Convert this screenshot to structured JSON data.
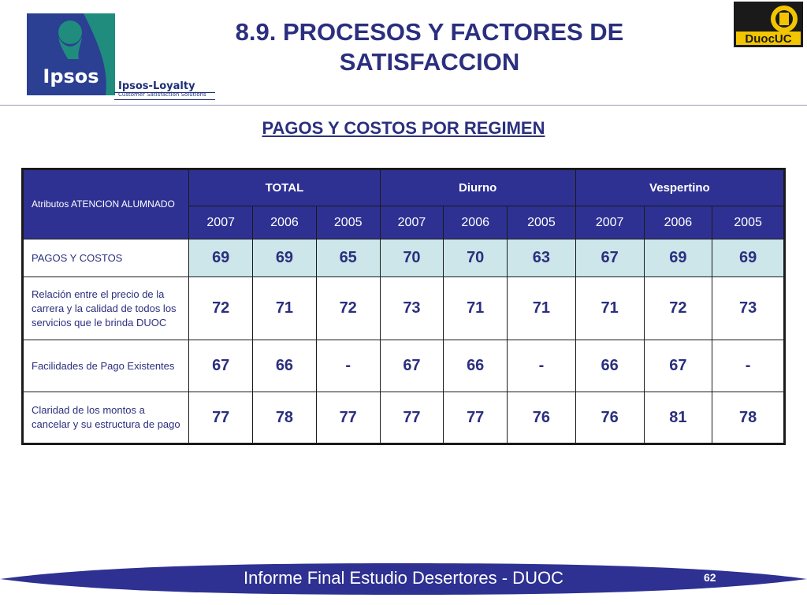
{
  "header": {
    "title": "8.9. PROCESOS Y FACTORES DE SATISFACCION",
    "subtitle": "PAGOS Y COSTOS POR REGIMEN",
    "ipsos_logo": {
      "name": "Ipsos",
      "icon": "ipsos-head-icon"
    },
    "ipsos_loyalty": {
      "brand": "Ipsos-Loyalty",
      "tagline": "Customer Satisfaction Solutions"
    },
    "duoc_logo": {
      "name": "DuocUC",
      "icon": "duoc-crest-icon"
    }
  },
  "table": {
    "attribute_header": "Atributos ATENCION ALUMNADO",
    "groups": [
      "TOTAL",
      "Diurno",
      "Vespertino"
    ],
    "years": [
      "2007",
      "2006",
      "2005",
      "2007",
      "2006",
      "2005",
      "2007",
      "2006",
      "2005"
    ],
    "rows": [
      {
        "label": "PAGOS Y COSTOS",
        "values": [
          "69",
          "69",
          "65",
          "70",
          "70",
          "63",
          "67",
          "69",
          "69"
        ]
      },
      {
        "label": "Relación entre el precio de la carrera y la calidad de todos los servicios que le brinda DUOC",
        "values": [
          "72",
          "71",
          "72",
          "73",
          "71",
          "71",
          "71",
          "72",
          "73"
        ]
      },
      {
        "label": "Facilidades de Pago Existentes",
        "values": [
          "67",
          "66",
          "-",
          "67",
          "66",
          "-",
          "66",
          "67",
          "-"
        ]
      },
      {
        "label": "Claridad de los montos a cancelar y su estructura de pago",
        "values": [
          "77",
          "78",
          "77",
          "77",
          "77",
          "76",
          "76",
          "81",
          "78"
        ]
      }
    ]
  },
  "footer": {
    "text": "Informe Final Estudio Desertores - DUOC",
    "page_number": "62"
  },
  "colors": {
    "title": "#2b2f7e",
    "header_fill": "#2e3192",
    "cell_highlight": "#cde6ea",
    "footer_bar": "#2e3192",
    "ipsos_teal": "#1f8c7e",
    "ipsos_blue": "#2b3f93",
    "duoc_yellow": "#f2c500"
  }
}
